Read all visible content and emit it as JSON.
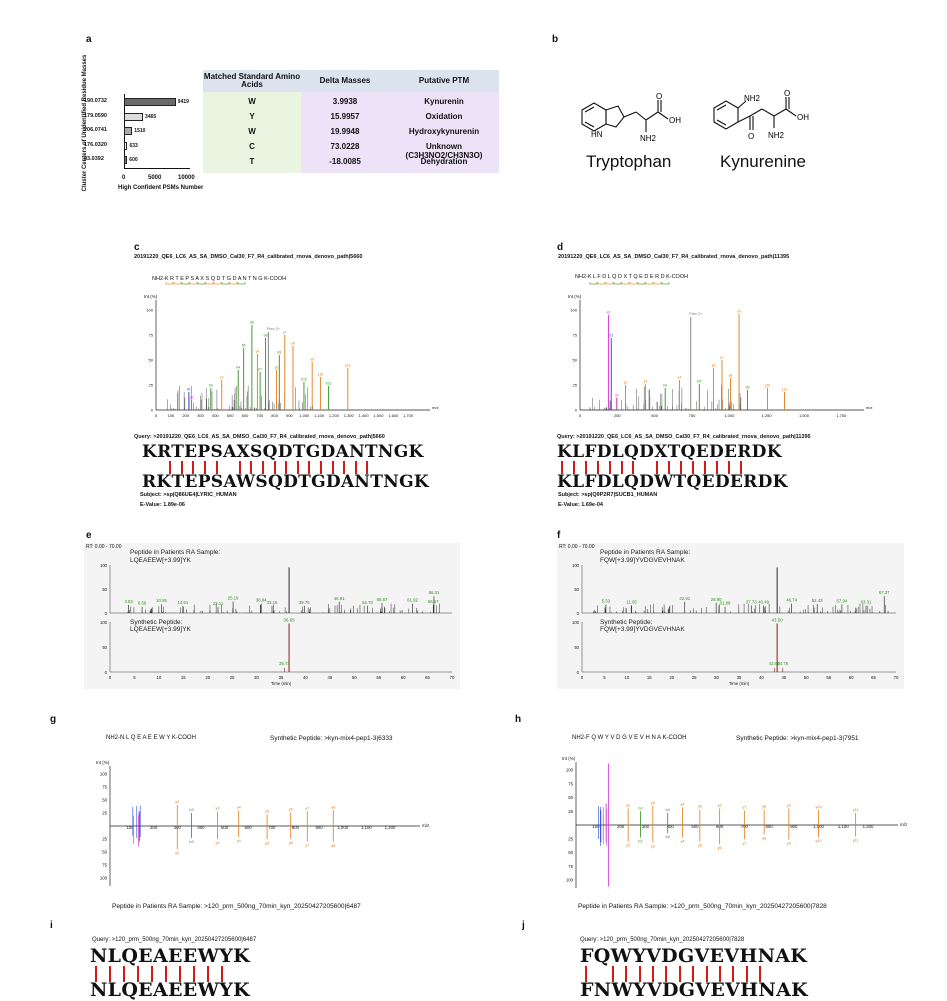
{
  "panels": {
    "a": "a",
    "b": "b",
    "c": "c",
    "d": "d",
    "e": "e",
    "f": "f",
    "g": "g",
    "h": "h",
    "i": "i",
    "j": "j"
  },
  "panel_a": {
    "y_axis_label": "Cluster Centers of Unidentified Residue Masses",
    "x_axis_label": "High Confident PSMs Number",
    "x_ticks": [
      "0",
      "5000",
      "10000"
    ],
    "bars": [
      {
        "label": "190.0732",
        "value": 9419,
        "value_text": "9419"
      },
      {
        "label": "179.0590",
        "value": 3465,
        "value_text": "3465"
      },
      {
        "label": "206.0741",
        "value": 1510,
        "value_text": "1510"
      },
      {
        "label": "176.0320",
        "value": 633,
        "value_text": "633"
      },
      {
        "label": "83.0392",
        "value": 600,
        "value_text": "600"
      }
    ],
    "bar_colors": [
      "#6b6b6b",
      "#dcdcdc",
      "#a9a9a9",
      "#ffffff",
      "#777777"
    ],
    "table": {
      "headers": [
        "Matched Standard Amino Acids",
        "Delta Masses",
        "Putative PTM"
      ],
      "rows": [
        [
          "W",
          "3.9938",
          "Kynurenin"
        ],
        [
          "Y",
          "15.9957",
          "Oxidation"
        ],
        [
          "W",
          "19.9948",
          "Hydroxykynurenin"
        ],
        [
          "C",
          "73.0228",
          "Unknown (C3H3NO2/CH3N3O)"
        ],
        [
          "T",
          "-18.0085",
          "Dehydration"
        ]
      ]
    }
  },
  "panel_b": {
    "left_name": "Tryptophan",
    "right_name": "Kynurenine",
    "atoms": {
      "nh": "HN",
      "nh2": "NH2",
      "oh": "OH",
      "o": "O",
      "nh2b": "NH2",
      "ohb": "OH",
      "ob": "O"
    }
  },
  "panel_c": {
    "title": "20191220_QE6_LC6_AS_SA_DMSO_Cal30_F7_R4_calibrated_rnova_denovo_path|5660",
    "peptide_markup": "NH2-K R T E P S A X S Q D T G D A N T N G K-COOH",
    "y_axis_label": "Int (%)",
    "x_ticks": [
      "0",
      "100",
      "200",
      "300",
      "400",
      "500",
      "600",
      "700",
      "800",
      "900",
      "1,000",
      "1,100",
      "1,200",
      "1,300",
      "1,400",
      "1,500",
      "1,600",
      "1,700"
    ],
    "precursor_label": "Prec 2+",
    "query": "Query: >20191220_QE6_LC6_AS_SA_DMSO_Cal30_F7_R4_calibrated_rnova_denovo_path|5660",
    "seq_top": "KRTEPSAXSQDTGDANTNGK",
    "seq_bottom": "RKTEPSAWSQDTGDANTNGK",
    "subject": "Subject: >sp|Q86UE4|LYRIC_HUMAN",
    "evalue": "E-Value: 1.89e-06"
  },
  "panel_d": {
    "title": "20191220_QE6_LC6_AS_SA_DMSO_Cal30_F7_R4_calibrated_rnova_denovo_path|11395",
    "peptide_markup": "NH2-K L F D L Q D X T Q E D E R D K-COOH",
    "y_axis_label": "Int (%)",
    "x_ticks": [
      "0",
      "250",
      "500",
      "750",
      "1,000",
      "1,250",
      "1,500",
      "1,750"
    ],
    "precursor_label": "Prec 2+",
    "query": "Query: >20191220_QE6_LC6_AS_SA_DMSO_Cal30_F7_R4_calibrated_rnova_denovo_path|11395",
    "seq_top": "KLFDLQDXTQEDERDK",
    "seq_bottom": "KLFDLQDWTQEDERDK",
    "subject": "Subject: >sp|Q9P2R7|SUCB1_HUMAN",
    "evalue": "E-Value: 1.69e-04"
  },
  "panel_e": {
    "rt_label": "RT: 0.00 - 70.00",
    "top_title": "Peptide in Patients RA Sample:",
    "top_peptide": "LQEAEEW[+3.99]YK",
    "top_peaks": [
      "3.82",
      "6.56",
      "10.55",
      "14.91",
      "22.11",
      "25.19",
      "30.94",
      "33.16",
      "39.76",
      "46.91",
      "52.70",
      "55.67",
      "61.92",
      "66.17",
      "66.31"
    ],
    "bottom_title": "Synthetic Peptide:",
    "bottom_peptide": "LQEAEEW[+3.99]YK",
    "bottom_peaks": [
      "36.65",
      "35.73"
    ],
    "x_ticks": [
      "0",
      "5",
      "10",
      "15",
      "20",
      "25",
      "30",
      "35",
      "40",
      "45",
      "50",
      "55",
      "60",
      "65",
      "70"
    ],
    "x_label": "Time (min)"
  },
  "panel_f": {
    "rt_label": "RT: 0.00 - 70.00",
    "top_title": "Peptide in Patients RA Sample:",
    "top_peptide": "FQW[+3.99]YVDGVEVHNAK",
    "top_peaks": [
      "5.33",
      "11.05",
      "22.91",
      "29.90",
      "31.89",
      "37.73",
      "40.49",
      "46.74",
      "52.43",
      "57.94",
      "63.31",
      "67.37"
    ],
    "bottom_title": "Synthetic Peptide:",
    "bottom_peptide": "FQW[+3.99]YVDGVEVHNAK",
    "bottom_peaks": [
      "43.50",
      "42.90",
      "44.76"
    ],
    "x_ticks": [
      "0",
      "5",
      "10",
      "15",
      "20",
      "25",
      "30",
      "35",
      "40",
      "45",
      "50",
      "55",
      "60",
      "65",
      "70"
    ],
    "x_label": "Time (min)"
  },
  "panel_g": {
    "peptide_markup": "NH2-N L Q E A E E W Y K-COOH",
    "synthetic": "Synthetic Peptide: >kyn-mix4-pep1-3|6333",
    "y_axis_label": "Int (%)",
    "x_ticks": [
      "100",
      "200",
      "300",
      "400",
      "500",
      "600",
      "700",
      "800",
      "900",
      "1,000",
      "1,100",
      "1,200"
    ],
    "x_unit": "m/z",
    "footer": "Peptide in Patients RA Sample: >120_prm_500ng_70min_kyn_20250427205600|6487"
  },
  "panel_h": {
    "peptide_markup": "NH2-F Q W Y V D G V E V H N A K-COOH",
    "synthetic": "Synthetic Peptide: >kyn-mix4-pep1-3|7951",
    "y_axis_label": "Int (%)",
    "x_ticks": [
      "100",
      "200",
      "300",
      "400",
      "500",
      "600",
      "700",
      "800",
      "900",
      "1,000",
      "1,100",
      "1,200"
    ],
    "x_unit": "m/z",
    "footer": "Peptide in Patients RA Sample: >120_prm_500ng_70min_kyn_20250427205600|7828"
  },
  "panel_i": {
    "query": "Query: >120_prm_500ng_70min_kyn_20250427205600|6487",
    "seq_top": "NLQEAEEWYK",
    "seq_bottom": "NLQEAEEWYK"
  },
  "panel_j": {
    "query": "Query: >120_prm_500ng_70min_kyn_20250427205600|7828",
    "seq_top": "FQWYVDGVEVHNAK",
    "seq_bottom": "FNWYVDGVEVHNAK"
  },
  "colors": {
    "b_ion": "#2f8f1f",
    "y_ion": "#e07b14",
    "precursor": "#7a7a7a",
    "immonium": "#d629d6",
    "internal": "#1f3fd0",
    "match": "#d21a1a",
    "trace_top": "#111111",
    "trace_synthetic": "#8b1a1a"
  }
}
